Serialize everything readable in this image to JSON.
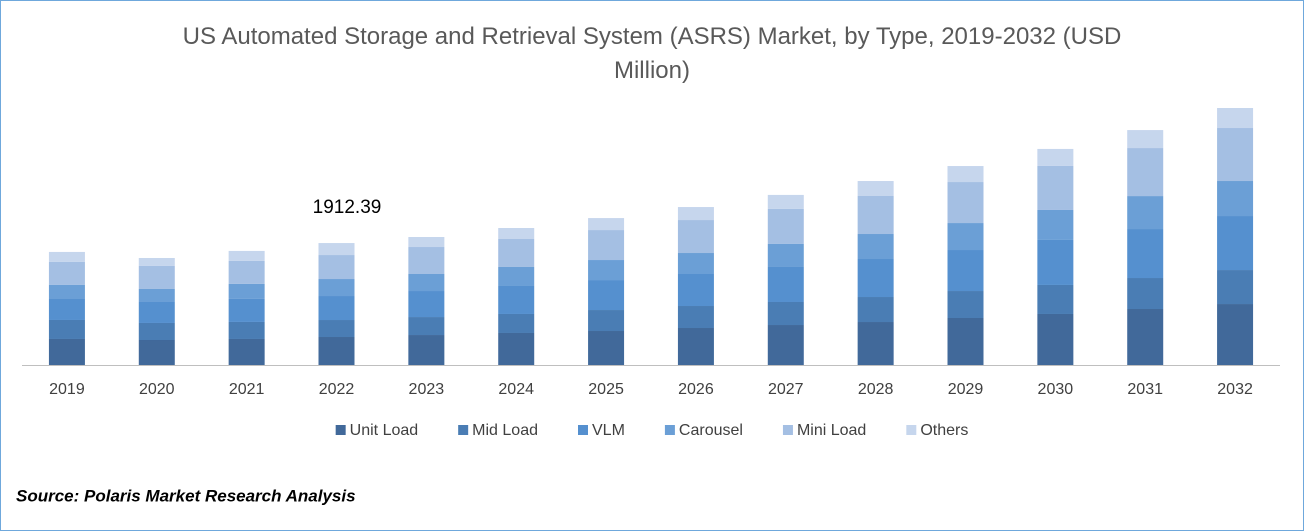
{
  "chart_data": {
    "type": "stacked-bar",
    "title": "US Automated Storage and Retrieval System (ASRS) Market, by Type, 2019-2032 (USD Million)",
    "categories": [
      "2019",
      "2020",
      "2021",
      "2022",
      "2023",
      "2024",
      "2025",
      "2026",
      "2027",
      "2028",
      "2029",
      "2030",
      "2031",
      "2032"
    ],
    "series": [
      {
        "name": "Unit Load",
        "color": "#41699a",
        "values": [
          408,
          392,
          408,
          438.91,
          470,
          502,
          533,
          580,
          627,
          674,
          737,
          800,
          878,
          956
        ]
      },
      {
        "name": "Mid Load",
        "color": "#4a7db4",
        "values": [
          298,
          267,
          267,
          266.48,
          282,
          298,
          329,
          345,
          361,
          392,
          423,
          455,
          486,
          533
        ]
      },
      {
        "name": "VLM",
        "color": "#5590cf",
        "values": [
          329,
          329,
          361,
          376.21,
          408,
          439,
          470,
          502,
          549,
          596,
          643,
          706,
          768,
          847
        ]
      },
      {
        "name": "Carousel",
        "color": "#6b9fd6",
        "values": [
          220,
          204,
          235,
          266.48,
          267,
          298,
          314,
          329,
          361,
          392,
          423,
          470,
          517,
          549
        ]
      },
      {
        "name": "Mini Load",
        "color": "#a4bfe3",
        "values": [
          361,
          361,
          361,
          376.21,
          423,
          439,
          470,
          517,
          549,
          596,
          643,
          690,
          753,
          831
        ]
      },
      {
        "name": "Others",
        "color": "#c6d6ed",
        "values": [
          157,
          125,
          157,
          188.1,
          157,
          172,
          188,
          204,
          220,
          235,
          251,
          267,
          282,
          314
        ]
      }
    ],
    "annotation": "1912.39",
    "source": "Source: Polaris Market Research Analysis"
  }
}
